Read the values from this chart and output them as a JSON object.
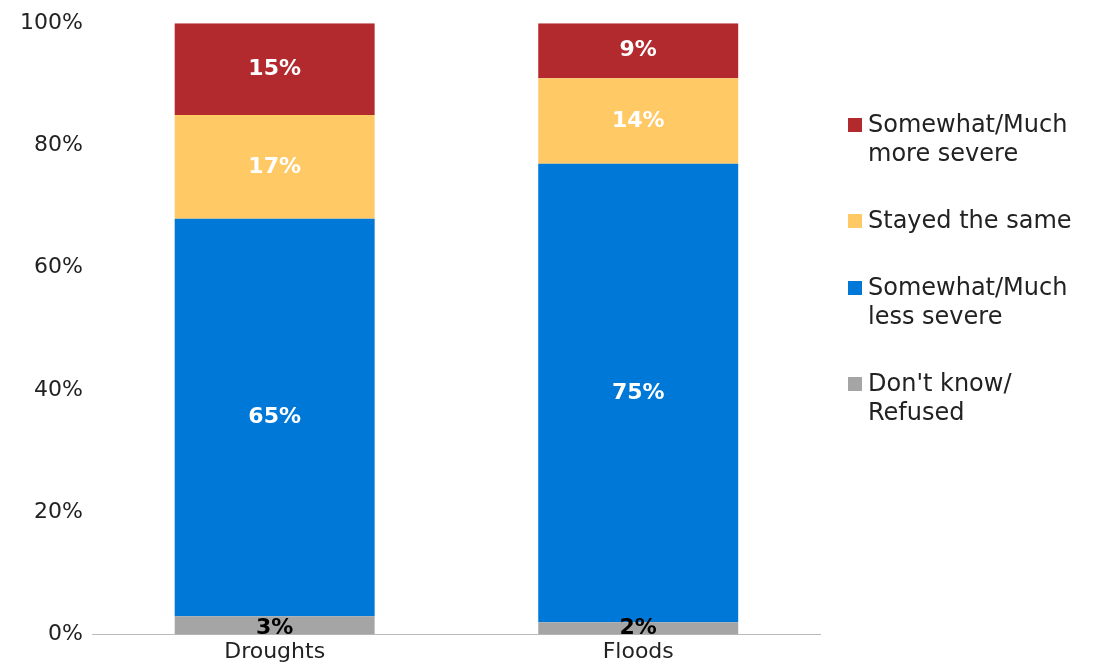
{
  "chart_data": {
    "type": "bar",
    "stacked": true,
    "categories": [
      "Droughts",
      "Floods"
    ],
    "series": [
      {
        "name": "Don't know/ Refused",
        "color": "#a5a5a5",
        "values": [
          3,
          2
        ],
        "value_labels": [
          "3%",
          "2%"
        ]
      },
      {
        "name": "Somewhat/Much less severe",
        "color": "#0078d7",
        "values": [
          65,
          75
        ],
        "value_labels": [
          "65%",
          "75%"
        ]
      },
      {
        "name": "Stayed the same",
        "color": "#ffc966",
        "values": [
          17,
          14
        ],
        "value_labels": [
          "17%",
          "14%"
        ]
      },
      {
        "name": "Somewhat/Much more severe",
        "color": "#b22a2e",
        "values": [
          15,
          9
        ],
        "value_labels": [
          "15%",
          "9%"
        ]
      }
    ],
    "ylim": [
      0,
      100
    ],
    "yticks": [
      {
        "value": 0,
        "label": "0%"
      },
      {
        "value": 20,
        "label": "20%"
      },
      {
        "value": 40,
        "label": "40%"
      },
      {
        "value": 60,
        "label": "60%"
      },
      {
        "value": 80,
        "label": "80%"
      },
      {
        "value": 100,
        "label": "100%"
      }
    ],
    "grid": false,
    "legend": "right"
  }
}
